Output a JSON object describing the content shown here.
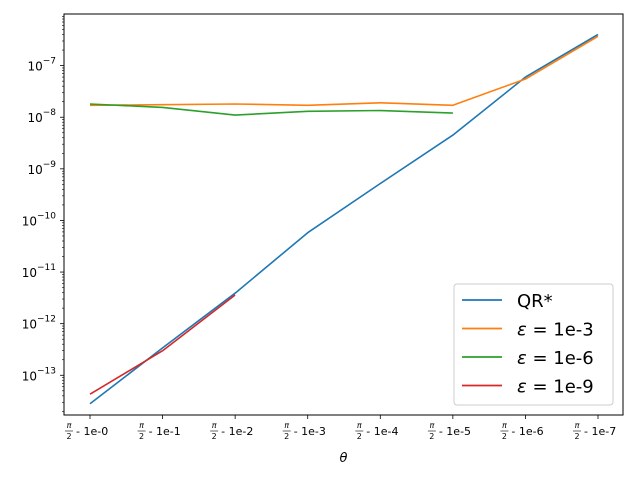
{
  "chart_data": {
    "type": "line",
    "title": "",
    "xlabel": "θ",
    "ylabel": "",
    "yscale": "log",
    "ylim": [
      1.7e-14,
      1e-06
    ],
    "grid": false,
    "legend_position": "lower-right",
    "categories": [
      "π/2 - 1e-0",
      "π/2 - 1e-1",
      "π/2 - 1e-2",
      "π/2 - 1e-3",
      "π/2 - 1e-4",
      "π/2 - 1e-5",
      "π/2 - 1e-6",
      "π/2 - 1e-7"
    ],
    "category_suffixes": [
      "1e-0",
      "1e-1",
      "1e-2",
      "1e-3",
      "1e-4",
      "1e-5",
      "1e-6",
      "1e-7"
    ],
    "y_ticks": [
      {
        "value": 1e-13,
        "mantissa": "10",
        "exponent": "−13"
      },
      {
        "value": 1e-12,
        "mantissa": "10",
        "exponent": "−12"
      },
      {
        "value": 1e-11,
        "mantissa": "10",
        "exponent": "−11"
      },
      {
        "value": 1e-10,
        "mantissa": "10",
        "exponent": "−10"
      },
      {
        "value": 1e-09,
        "mantissa": "10",
        "exponent": "−9"
      },
      {
        "value": 1e-08,
        "mantissa": "10",
        "exponent": "−8"
      },
      {
        "value": 1e-07,
        "mantissa": "10",
        "exponent": "−7"
      }
    ],
    "series": [
      {
        "name": "QR*",
        "label_prefix": "",
        "label_value": "QR*",
        "color": "#1f77b4",
        "values": [
          2.8e-14,
          3.4e-13,
          3.9e-12,
          5.8e-11,
          5.2e-10,
          4.5e-09,
          6e-08,
          4e-07
        ]
      },
      {
        "name": "ε = 1e-3",
        "label_prefix": "ε",
        "label_value": "= 1e-3",
        "color": "#ff7f0e",
        "values": [
          1.7e-08,
          1.75e-08,
          1.8e-08,
          1.7e-08,
          1.9e-08,
          1.7e-08,
          5.5e-08,
          3.7e-07
        ]
      },
      {
        "name": "ε = 1e-6",
        "label_prefix": "ε",
        "label_value": "= 1e-6",
        "color": "#2ca02c",
        "values": [
          1.8e-08,
          1.55e-08,
          1.1e-08,
          1.3e-08,
          1.35e-08,
          1.2e-08,
          null,
          null
        ]
      },
      {
        "name": "ε = 1e-9",
        "label_prefix": "ε",
        "label_value": "= 1e-9",
        "color": "#d62728",
        "values": [
          4.3e-14,
          3e-13,
          3.6e-12,
          null,
          null,
          null,
          null,
          null
        ]
      }
    ]
  }
}
